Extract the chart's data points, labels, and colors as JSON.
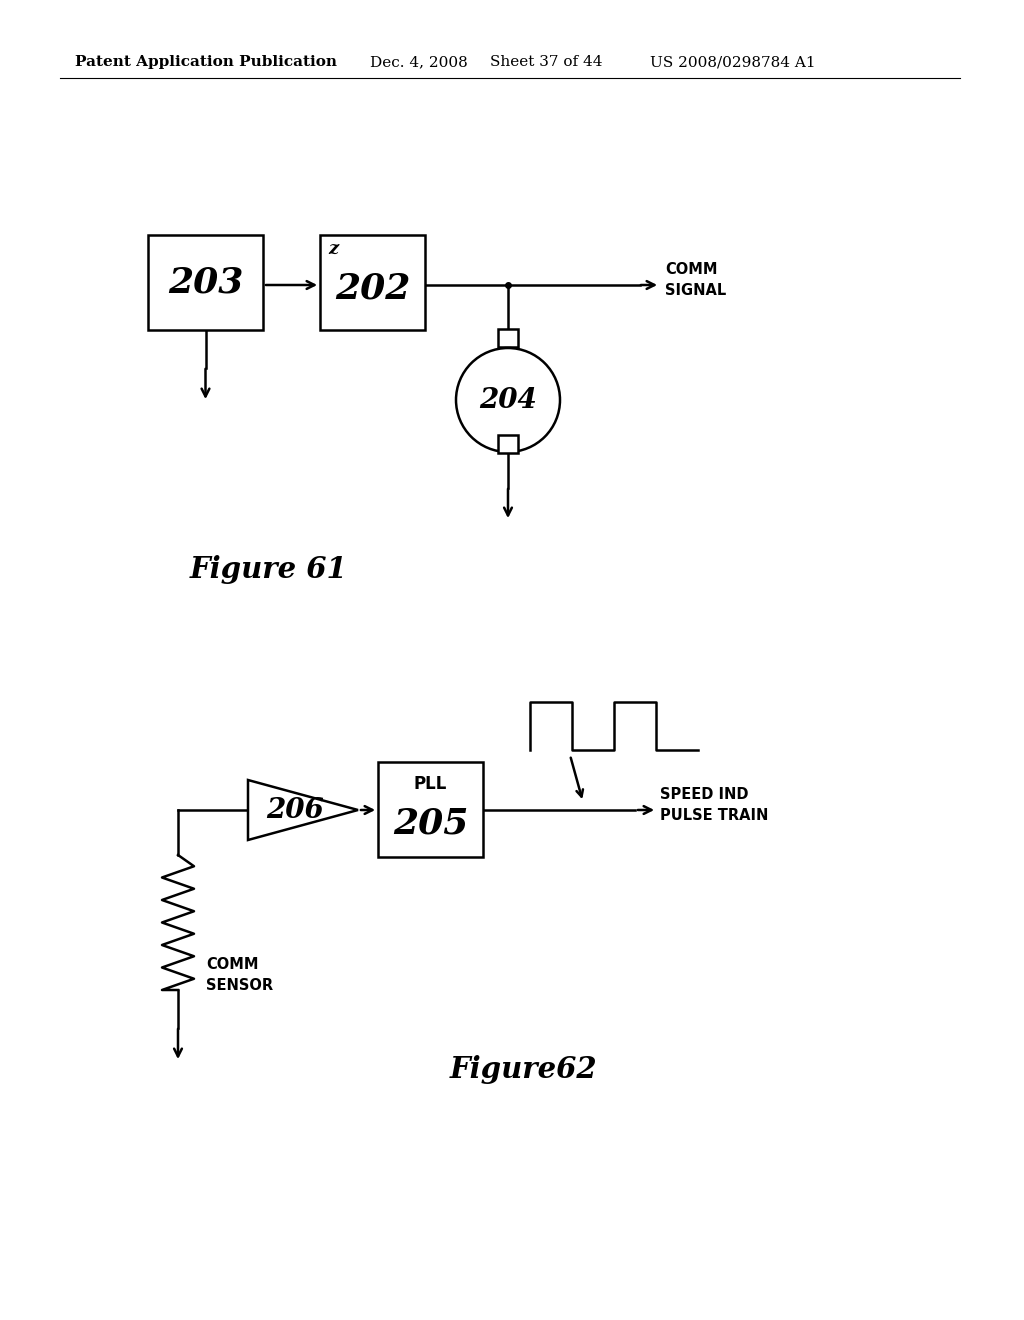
{
  "bg_color": "#ffffff",
  "header_text": "Patent Application Publication",
  "header_date": "Dec. 4, 2008",
  "header_sheet": "Sheet 37 of 44",
  "header_patent": "US 2008/0298784 A1",
  "fig61_label": "Figure 61",
  "fig62_label": "Figure62",
  "box203_label": "203",
  "box202_label": "202",
  "box202_top": "z",
  "circle204_label": "204",
  "comm_signal_label": "COMM\nSIGNAL",
  "triangle206_label": "206",
  "box205_label": "205",
  "box205_top": "PLL",
  "speed_label": "SPEED IND\nPULSE TRAIN",
  "comm_sensor_label": "COMM\nSENSOR"
}
